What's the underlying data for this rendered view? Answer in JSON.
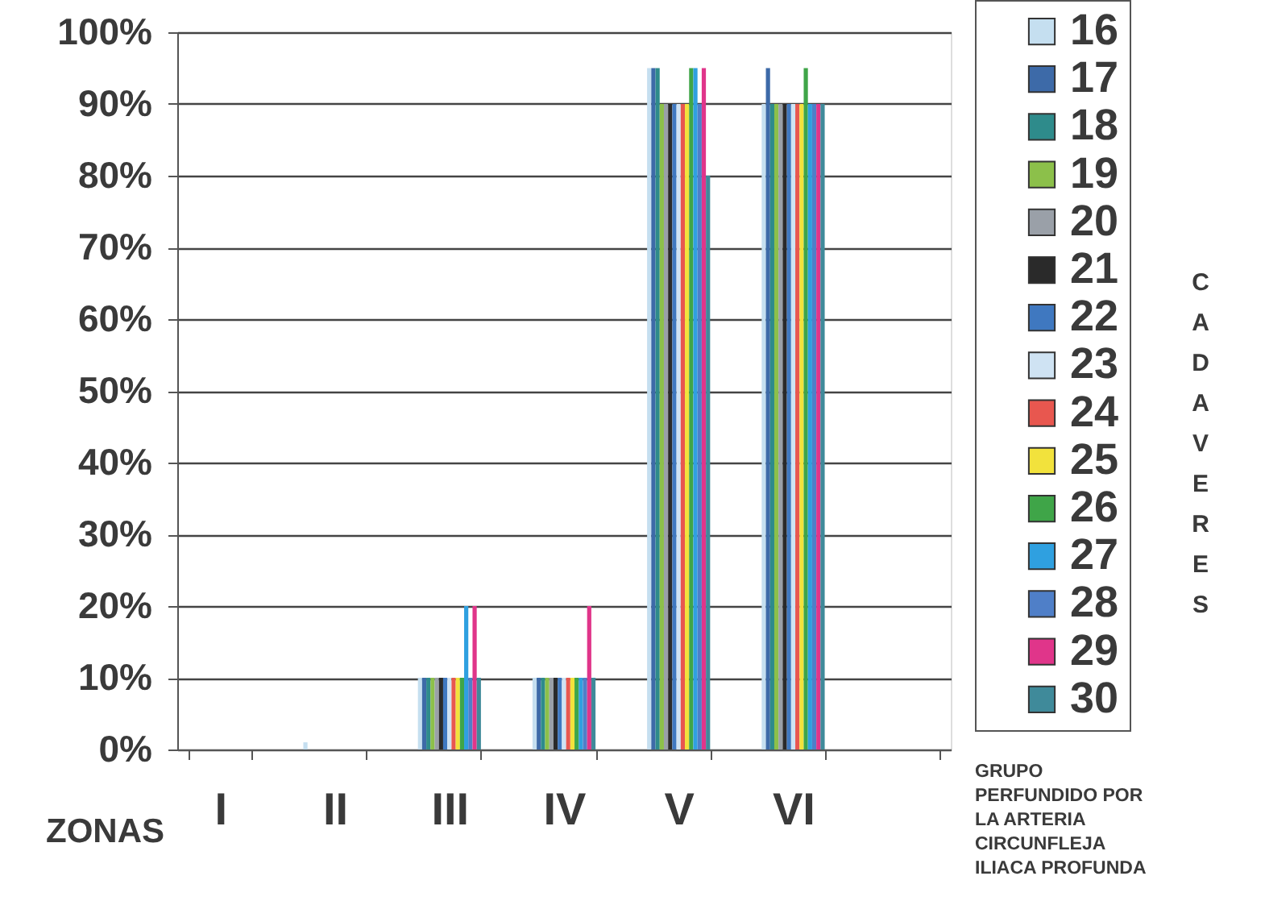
{
  "chart_data": {
    "type": "bar",
    "xlabel": "ZONAS",
    "legend_title": "CADAVERES",
    "categories": [
      "I",
      "II",
      "III",
      "IV",
      "V",
      "VI",
      null
    ],
    "series": [
      {
        "name": "16",
        "color": "#c5dff0",
        "values": [
          0,
          1,
          10,
          10,
          95,
          90,
          0
        ]
      },
      {
        "name": "17",
        "color": "#3d6aa8",
        "values": [
          0,
          0,
          10,
          10,
          95,
          95,
          0
        ]
      },
      {
        "name": "18",
        "color": "#2e8b8b",
        "values": [
          0,
          0,
          10,
          10,
          95,
          90,
          0
        ]
      },
      {
        "name": "19",
        "color": "#8cc04a",
        "values": [
          0,
          0,
          10,
          10,
          90,
          90,
          0
        ]
      },
      {
        "name": "20",
        "color": "#9aa0a8",
        "values": [
          0,
          0,
          10,
          10,
          90,
          90,
          0
        ]
      },
      {
        "name": "21",
        "color": "#2a2a2a",
        "values": [
          0,
          0,
          10,
          10,
          90,
          90,
          0
        ]
      },
      {
        "name": "22",
        "color": "#3f78c0",
        "values": [
          0,
          0,
          10,
          10,
          90,
          90,
          0
        ]
      },
      {
        "name": "23",
        "color": "#cfe3f3",
        "values": [
          0,
          0,
          10,
          10,
          90,
          90,
          0
        ]
      },
      {
        "name": "24",
        "color": "#e8574f",
        "values": [
          0,
          0,
          10,
          10,
          90,
          90,
          0
        ]
      },
      {
        "name": "25",
        "color": "#f2e23c",
        "values": [
          0,
          0,
          10,
          10,
          90,
          90,
          0
        ]
      },
      {
        "name": "26",
        "color": "#3fa548",
        "values": [
          0,
          0,
          10,
          10,
          95,
          95,
          0
        ]
      },
      {
        "name": "27",
        "color": "#2fa0e0",
        "values": [
          0,
          0,
          20,
          10,
          95,
          90,
          0
        ]
      },
      {
        "name": "28",
        "color": "#4f7fc8",
        "values": [
          0,
          0,
          10,
          10,
          90,
          90,
          0
        ]
      },
      {
        "name": "29",
        "color": "#e0358a",
        "values": [
          0,
          0,
          20,
          20,
          95,
          90,
          0
        ]
      },
      {
        "name": "30",
        "color": "#3f8a9a",
        "values": [
          0,
          0,
          10,
          10,
          80,
          90,
          0
        ]
      }
    ],
    "ylim": [
      0,
      100
    ],
    "yticks": [
      {
        "value": 0,
        "label": "0%"
      },
      {
        "value": 10,
        "label": "10%"
      },
      {
        "value": 20,
        "label": "20%"
      },
      {
        "value": 30,
        "label": "30%"
      },
      {
        "value": 40,
        "label": "40%"
      },
      {
        "value": 50,
        "label": "50%"
      },
      {
        "value": 60,
        "label": "60%"
      },
      {
        "value": 70,
        "label": "70%"
      },
      {
        "value": 80,
        "label": "80%"
      },
      {
        "value": 90,
        "label": "90%"
      },
      {
        "value": 100,
        "label": "100%"
      }
    ],
    "grid": "y",
    "legend": "right",
    "annotations": [
      "GRUPO PERFUNDIDO POR LA ARTERIA CIRCUNFLEJA ILIACA PROFUNDA"
    ]
  }
}
